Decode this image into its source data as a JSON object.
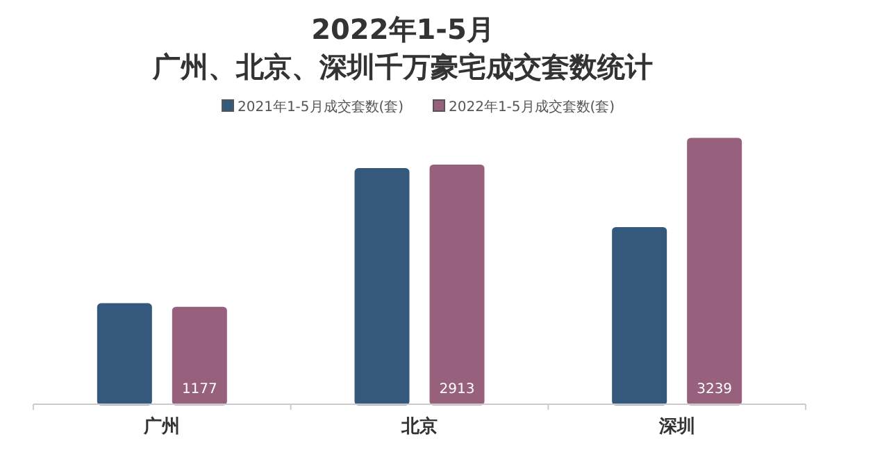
{
  "chart_data": {
    "type": "bar",
    "title": "2022年1-5月",
    "subtitle": "广州、北京、深圳千万豪宅成交套数统计",
    "categories": [
      "广州",
      "北京",
      "深圳"
    ],
    "legend": "top",
    "series": [
      {
        "name": "2021年1-5月成交套数(套)",
        "color": "#34597d",
        "values": [
          1220,
          2870,
          2150
        ]
      },
      {
        "name": "2022年1-5月成交套数(套)",
        "color": "#97607d",
        "values": [
          1177,
          2913,
          3239
        ],
        "value_labels": [
          "1177",
          "2913",
          "3239"
        ]
      }
    ]
  }
}
